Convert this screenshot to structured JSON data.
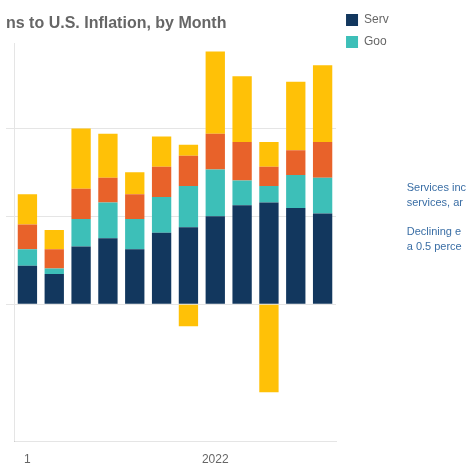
{
  "chart_data": {
    "type": "bar",
    "title": "ns to U.S. Inflation, by Month",
    "categories": [
      "1",
      null,
      null,
      null,
      null,
      null,
      null,
      "2022",
      null,
      null,
      null,
      null
    ],
    "series": [
      {
        "name": "Serv",
        "color": "#12375e",
        "values": [
          0.14,
          0.11,
          0.21,
          0.24,
          0.2,
          0.26,
          0.28,
          0.32,
          0.36,
          0.37,
          0.35,
          0.33
        ]
      },
      {
        "name": "Goo",
        "color": "#3dbfb8",
        "values": [
          0.06,
          0.02,
          0.1,
          0.13,
          0.11,
          0.13,
          0.15,
          0.17,
          0.09,
          0.06,
          0.12,
          0.13
        ]
      },
      {
        "color": "#e8622a",
        "values": [
          0.09,
          0.07,
          0.11,
          0.09,
          0.09,
          0.11,
          0.11,
          0.13,
          0.14,
          0.07,
          0.09,
          0.13
        ]
      },
      {
        "color": "#ffc107",
        "values": [
          0.11,
          0.07,
          0.22,
          0.16,
          0.08,
          0.11,
          0.04,
          0.3,
          0.24,
          0.09,
          0.25,
          0.28
        ]
      },
      {
        "color": "#ffc107",
        "values": [
          0.0,
          0.0,
          0.0,
          0.0,
          0.0,
          0.0,
          -0.08,
          0.0,
          0.0,
          -0.32,
          0.0,
          0.0
        ]
      }
    ],
    "stacked": true,
    "ylim": [
      -0.5,
      0.95
    ],
    "yticks": [
      0,
      0.32,
      0.64
    ],
    "grid": true,
    "legend": "right",
    "tick_labels": "x",
    "annotations": [
      "Services inc\nservices, ar",
      "Declining e\na 0.5 perce"
    ]
  }
}
